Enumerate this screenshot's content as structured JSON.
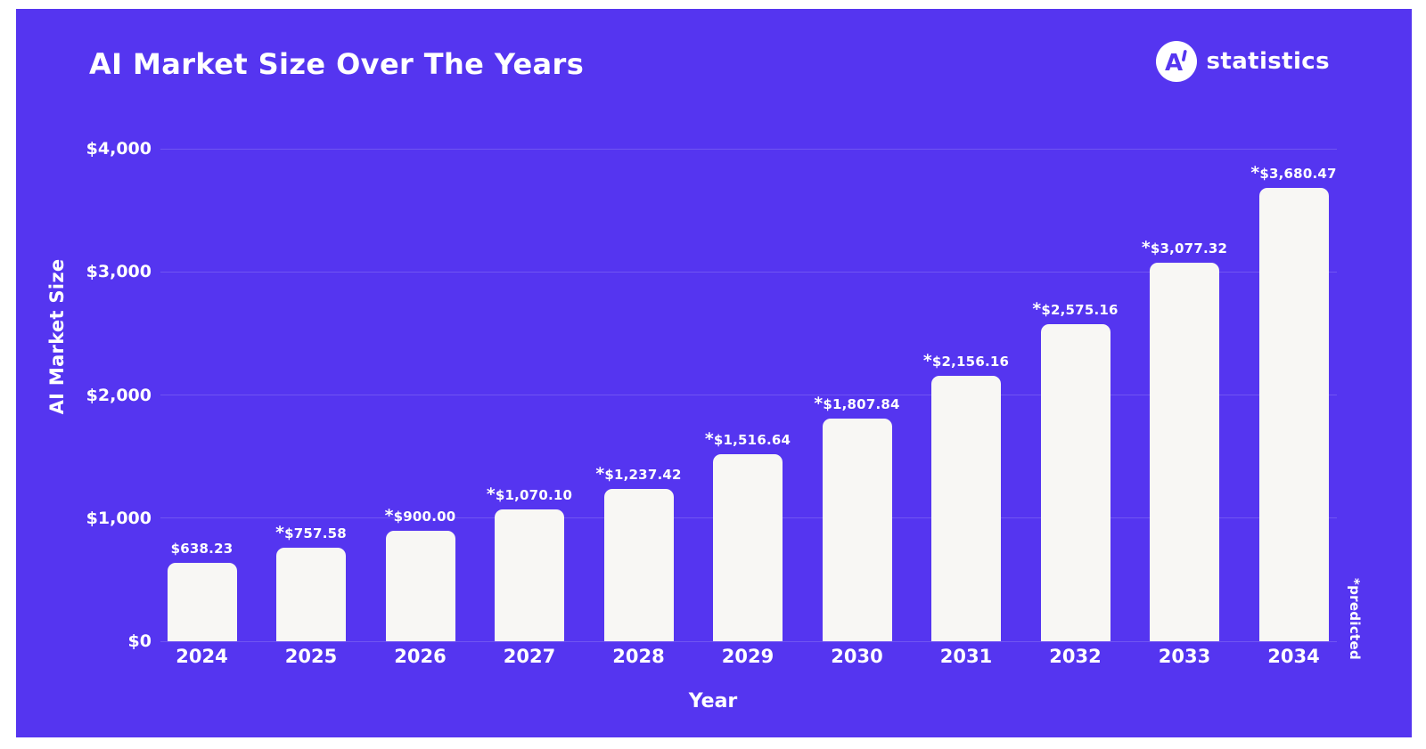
{
  "header": {
    "title": "AI Market Size Over The Years",
    "logo": {
      "monogram": "A",
      "text": "statistics"
    }
  },
  "theme": {
    "card_background": "#5535F0",
    "bar_color": "#F8F7F4",
    "text_color": "#FFFFFF",
    "gridline_color": "rgba(255,255,255,0.16)"
  },
  "chart_data": {
    "type": "bar",
    "title": "AI Market Size Over The Years",
    "xlabel": "Year",
    "ylabel": "AI Market Size",
    "ylim": [
      0,
      4000
    ],
    "grid": true,
    "legend_position": "none",
    "annotation": "*predicted",
    "yticks": [
      {
        "value": 0,
        "label": "$0"
      },
      {
        "value": 1000,
        "label": "$1,000"
      },
      {
        "value": 2000,
        "label": "$2,000"
      },
      {
        "value": 3000,
        "label": "$3,000"
      },
      {
        "value": 4000,
        "label": "$4,000"
      }
    ],
    "categories": [
      "2024",
      "2025",
      "2026",
      "2027",
      "2028",
      "2029",
      "2030",
      "2031",
      "2032",
      "2033",
      "2034"
    ],
    "values": [
      638.23,
      757.58,
      900.0,
      1070.1,
      1237.42,
      1516.64,
      1807.84,
      2156.16,
      2575.16,
      3077.32,
      3680.47
    ],
    "bars": [
      {
        "year": "2024",
        "value": 638.23,
        "label": "$638.23",
        "predicted": false
      },
      {
        "year": "2025",
        "value": 757.58,
        "label": "$757.58",
        "predicted": true
      },
      {
        "year": "2026",
        "value": 900.0,
        "label": "$900.00",
        "predicted": true
      },
      {
        "year": "2027",
        "value": 1070.1,
        "label": "$1,070.10",
        "predicted": true
      },
      {
        "year": "2028",
        "value": 1237.42,
        "label": "$1,237.42",
        "predicted": true
      },
      {
        "year": "2029",
        "value": 1516.64,
        "label": "$1,516.64",
        "predicted": true
      },
      {
        "year": "2030",
        "value": 1807.84,
        "label": "$1,807.84",
        "predicted": true
      },
      {
        "year": "2031",
        "value": 2156.16,
        "label": "$2,156.16",
        "predicted": true
      },
      {
        "year": "2032",
        "value": 2575.16,
        "label": "$2,575.16",
        "predicted": true
      },
      {
        "year": "2033",
        "value": 3077.32,
        "label": "$3,077.32",
        "predicted": true
      },
      {
        "year": "2034",
        "value": 3680.47,
        "label": "$3,680.47",
        "predicted": true
      }
    ]
  }
}
